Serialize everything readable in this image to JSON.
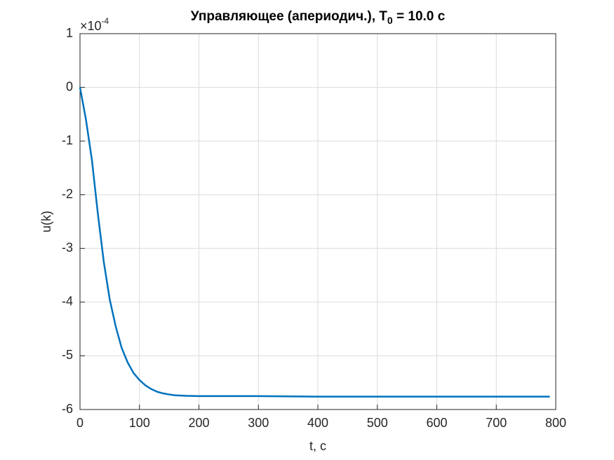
{
  "chart_data": {
    "type": "line",
    "title": [
      "Управляющее (апериодич.), T",
      "0",
      " = 10.0 с"
    ],
    "x_label": "t, c",
    "y_label": "u(k)",
    "y_exponent": {
      "base": "×10",
      "power": "-4"
    },
    "x": [
      0,
      10,
      20,
      30,
      40,
      50,
      60,
      70,
      80,
      90,
      100,
      110,
      120,
      130,
      140,
      150,
      160,
      170,
      180,
      200,
      300,
      400,
      500,
      600,
      700,
      790
    ],
    "series": [
      {
        "name": "u(k)",
        "color": "#0072bd",
        "values": [
          0,
          -0.6,
          -1.35,
          -2.35,
          -3.25,
          -3.95,
          -4.45,
          -4.85,
          -5.12,
          -5.32,
          -5.45,
          -5.55,
          -5.62,
          -5.67,
          -5.7,
          -5.72,
          -5.735,
          -5.74,
          -5.745,
          -5.75,
          -5.75,
          -5.76,
          -5.76,
          -5.76,
          -5.76,
          -5.76
        ]
      }
    ],
    "xlim": [
      0,
      800
    ],
    "xticks": [
      0,
      100,
      200,
      300,
      400,
      500,
      600,
      700,
      800
    ],
    "ylim": [
      -6,
      1
    ],
    "yticks": [
      -6,
      -5,
      -4,
      -3,
      -2,
      -1,
      0,
      1
    ],
    "grid": true
  }
}
